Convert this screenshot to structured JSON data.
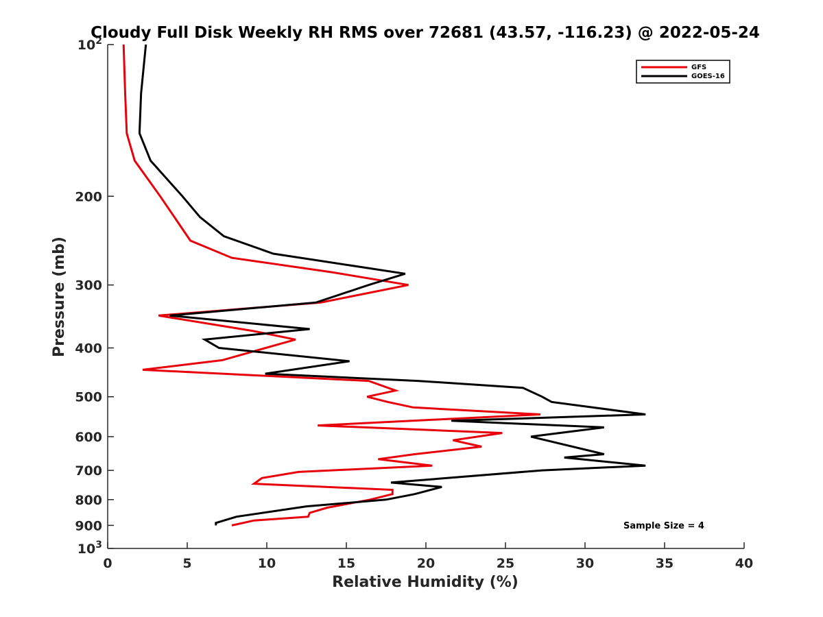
{
  "chart_data": {
    "type": "line",
    "title": "Cloudy Full Disk Weekly RH RMS over 72681 (43.57, -116.23) @ 2022-05-24",
    "xlabel": "Relative Humidity (%)",
    "ylabel": "Pressure (mb)",
    "xlim": [
      0,
      40
    ],
    "ylim": [
      100,
      1000
    ],
    "y_scale": "log",
    "y_reversed": true,
    "grid": false,
    "legend_position": "top-right",
    "x_ticks": [
      0,
      5,
      10,
      15,
      20,
      25,
      30,
      35,
      40
    ],
    "x_tick_labels": [
      "0",
      "5",
      "10",
      "15",
      "20",
      "25",
      "30",
      "35",
      "40"
    ],
    "y_ticks": [
      100,
      200,
      300,
      400,
      500,
      600,
      700,
      800,
      900,
      1000
    ],
    "y_tick_labels": [
      {
        "base": "10",
        "exp": "2"
      },
      {
        "base": "200"
      },
      {
        "base": "300"
      },
      {
        "base": "400"
      },
      {
        "base": "500"
      },
      {
        "base": "600"
      },
      {
        "base": "700"
      },
      {
        "base": "800"
      },
      {
        "base": "900"
      },
      {
        "base": "10",
        "exp": "3"
      }
    ],
    "series": [
      {
        "name": "GFS",
        "color": "#e8000b",
        "points": [
          [
            1.0,
            100
          ],
          [
            1.1,
            125
          ],
          [
            1.2,
            150
          ],
          [
            1.7,
            170
          ],
          [
            3.3,
            200
          ],
          [
            5.2,
            245
          ],
          [
            7.8,
            265
          ],
          [
            14.1,
            283
          ],
          [
            18.9,
            300
          ],
          [
            13.4,
            325
          ],
          [
            3.2,
            345
          ],
          [
            9.1,
            370
          ],
          [
            11.8,
            385
          ],
          [
            7.2,
            423
          ],
          [
            2.2,
            442
          ],
          [
            16.4,
            465
          ],
          [
            18.1,
            486
          ],
          [
            16.3,
            500
          ],
          [
            17.6,
            512
          ],
          [
            19.2,
            525
          ],
          [
            27.2,
            542
          ],
          [
            13.2,
            570
          ],
          [
            24.8,
            590
          ],
          [
            21.7,
            610
          ],
          [
            23.5,
            628
          ],
          [
            19.3,
            650
          ],
          [
            17.0,
            665
          ],
          [
            20.4,
            685
          ],
          [
            12.0,
            705
          ],
          [
            9.7,
            725
          ],
          [
            9.2,
            744
          ],
          [
            17.9,
            765
          ],
          [
            17.9,
            780
          ],
          [
            16.5,
            800
          ],
          [
            13.8,
            830
          ],
          [
            12.7,
            850
          ],
          [
            12.6,
            865
          ],
          [
            9.2,
            880
          ],
          [
            7.8,
            900
          ]
        ]
      },
      {
        "name": "GOES-16",
        "color": "#000000",
        "points": [
          [
            2.4,
            100
          ],
          [
            2.1,
            125
          ],
          [
            2.0,
            150
          ],
          [
            2.7,
            170
          ],
          [
            4.7,
            200
          ],
          [
            5.8,
            220
          ],
          [
            7.3,
            240
          ],
          [
            10.4,
            260
          ],
          [
            18.7,
            285
          ],
          [
            16.4,
            300
          ],
          [
            13.1,
            325
          ],
          [
            3.9,
            345
          ],
          [
            12.7,
            367
          ],
          [
            6.1,
            385
          ],
          [
            7.0,
            400
          ],
          [
            15.2,
            425
          ],
          [
            9.9,
            450
          ],
          [
            19.5,
            465
          ],
          [
            26.1,
            480
          ],
          [
            27.3,
            500
          ],
          [
            27.9,
            512
          ],
          [
            33.8,
            542
          ],
          [
            21.6,
            558
          ],
          [
            31.2,
            575
          ],
          [
            26.6,
            600
          ],
          [
            31.2,
            650
          ],
          [
            28.7,
            660
          ],
          [
            33.8,
            685
          ],
          [
            27.3,
            700
          ],
          [
            17.8,
            740
          ],
          [
            21.0,
            755
          ],
          [
            19.3,
            780
          ],
          [
            17.5,
            800
          ],
          [
            12.5,
            825
          ],
          [
            8.1,
            865
          ],
          [
            6.8,
            890
          ],
          [
            6.8,
            900
          ]
        ]
      }
    ],
    "annotation": "Sample Size = 4"
  }
}
